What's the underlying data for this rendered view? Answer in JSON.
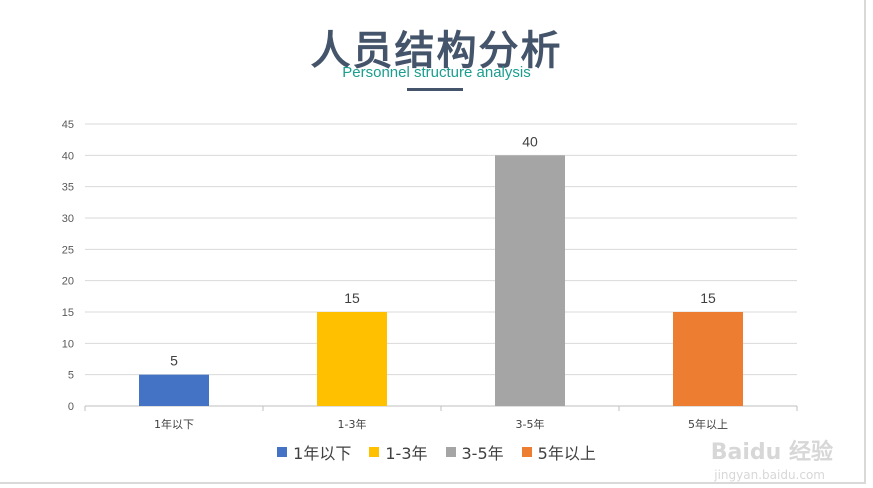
{
  "chart_data": {
    "type": "bar",
    "title": "人员结构分析",
    "subtitle": "Personnel structure analysis",
    "categories": [
      "1年以下",
      "1-3年",
      "3-5年",
      "5年以上"
    ],
    "values": [
      5,
      15,
      40,
      15
    ],
    "colors": [
      "#4472c4",
      "#ffc000",
      "#a5a5a5",
      "#ed7d31"
    ],
    "ylim": [
      0,
      45
    ],
    "yticks": [
      0,
      5,
      10,
      15,
      20,
      25,
      30,
      35,
      40,
      45
    ],
    "grid": true,
    "legend": "bottom",
    "data_labels": true
  },
  "watermark": {
    "logo_text": "Baidu 经验",
    "url_text": "jingyan.baidu.com"
  }
}
